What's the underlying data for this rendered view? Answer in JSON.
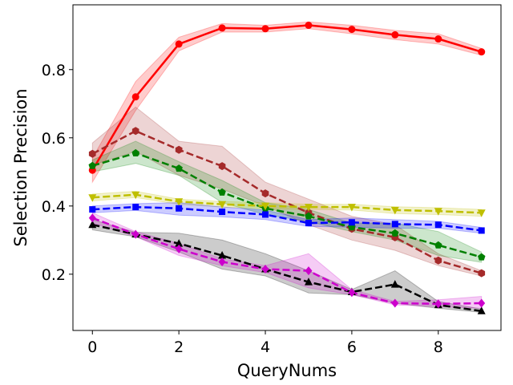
{
  "chart_data": {
    "type": "line",
    "xlabel": "QueryNums",
    "ylabel": "Selection Precision",
    "xlim": [
      -0.45,
      9.45
    ],
    "ylim": [
      0.035,
      0.99
    ],
    "xticks": [
      0,
      2,
      4,
      6,
      8
    ],
    "yticks": [
      0.2,
      0.4,
      0.6,
      0.8
    ],
    "xtick_labels": [
      "0",
      "2",
      "4",
      "6",
      "8"
    ],
    "ytick_labels": [
      "0.2",
      "0.4",
      "0.6",
      "0.8"
    ],
    "grid": false,
    "x": [
      0,
      1,
      2,
      3,
      4,
      5,
      6,
      7,
      8,
      9
    ],
    "series": [
      {
        "color": "#ff0000",
        "linestyle": "solid",
        "marker": "circle",
        "values": [
          0.505,
          0.72,
          0.875,
          0.922,
          0.92,
          0.93,
          0.918,
          0.902,
          0.89,
          0.852
        ],
        "lower": [
          0.47,
          0.68,
          0.855,
          0.91,
          0.91,
          0.92,
          0.905,
          0.888,
          0.875,
          0.842
        ],
        "upper": [
          0.54,
          0.765,
          0.895,
          0.935,
          0.93,
          0.94,
          0.93,
          0.915,
          0.905,
          0.862
        ]
      },
      {
        "color": "#a52a2a",
        "linestyle": "dashed",
        "marker": "hexagon",
        "values": [
          0.553,
          0.62,
          0.565,
          0.517,
          0.437,
          0.38,
          0.333,
          0.308,
          0.24,
          0.203
        ],
        "lower": [
          0.52,
          0.56,
          0.49,
          0.45,
          0.4,
          0.345,
          0.3,
          0.27,
          0.225,
          0.195
        ],
        "upper": [
          0.585,
          0.69,
          0.59,
          0.575,
          0.47,
          0.42,
          0.37,
          0.345,
          0.26,
          0.21
        ]
      },
      {
        "color": "#008000",
        "linestyle": "dashed",
        "marker": "pentagon",
        "values": [
          0.518,
          0.555,
          0.51,
          0.44,
          0.393,
          0.37,
          0.338,
          0.32,
          0.285,
          0.25
        ],
        "lower": [
          0.5,
          0.525,
          0.49,
          0.41,
          0.375,
          0.355,
          0.325,
          0.3,
          0.255,
          0.235
        ],
        "upper": [
          0.535,
          0.59,
          0.53,
          0.475,
          0.41,
          0.39,
          0.35,
          0.35,
          0.325,
          0.265
        ]
      },
      {
        "color": "#bfbf00",
        "linestyle": "dashed",
        "marker": "triangle_down",
        "values": [
          0.425,
          0.433,
          0.413,
          0.405,
          0.4,
          0.397,
          0.397,
          0.388,
          0.385,
          0.38
        ],
        "lower": [
          0.415,
          0.425,
          0.405,
          0.397,
          0.392,
          0.39,
          0.388,
          0.378,
          0.375,
          0.37
        ],
        "upper": [
          0.435,
          0.443,
          0.42,
          0.413,
          0.41,
          0.405,
          0.405,
          0.398,
          0.395,
          0.39
        ]
      },
      {
        "color": "#0000ff",
        "linestyle": "dashed",
        "marker": "square",
        "values": [
          0.39,
          0.397,
          0.393,
          0.383,
          0.375,
          0.35,
          0.352,
          0.347,
          0.345,
          0.328
        ],
        "lower": [
          0.38,
          0.387,
          0.373,
          0.368,
          0.36,
          0.34,
          0.338,
          0.335,
          0.335,
          0.32
        ],
        "upper": [
          0.4,
          0.407,
          0.41,
          0.397,
          0.388,
          0.36,
          0.365,
          0.36,
          0.355,
          0.337
        ]
      },
      {
        "color": "#000000",
        "linestyle": "dashed",
        "marker": "triangle_up",
        "values": [
          0.345,
          0.317,
          0.29,
          0.255,
          0.215,
          0.177,
          0.148,
          0.17,
          0.11,
          0.092
        ],
        "lower": [
          0.33,
          0.31,
          0.265,
          0.215,
          0.195,
          0.145,
          0.14,
          0.115,
          0.1,
          0.088
        ],
        "upper": [
          0.36,
          0.323,
          0.32,
          0.3,
          0.26,
          0.21,
          0.155,
          0.21,
          0.12,
          0.098
        ]
      },
      {
        "color": "#cc00cc",
        "linestyle": "dashed",
        "marker": "diamond",
        "values": [
          0.365,
          0.317,
          0.274,
          0.236,
          0.215,
          0.21,
          0.146,
          0.115,
          0.113,
          0.115
        ],
        "lower": [
          0.35,
          0.31,
          0.255,
          0.225,
          0.205,
          0.16,
          0.14,
          0.11,
          0.105,
          0.1
        ],
        "upper": [
          0.38,
          0.325,
          0.29,
          0.245,
          0.225,
          0.26,
          0.155,
          0.12,
          0.125,
          0.135
        ]
      }
    ]
  }
}
